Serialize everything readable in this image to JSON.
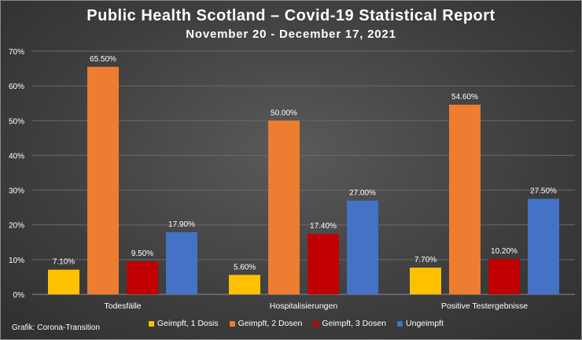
{
  "chart_data": {
    "type": "bar",
    "title": "Public Health Scotland – Covid-19 Statistical Report",
    "subtitle": "November 20 - December 17, 2021",
    "categories": [
      "Todesfälle",
      "Hospitalisierungen",
      "Positive Testergebnisse"
    ],
    "series": [
      {
        "name": "Geimpft, 1 Dosis",
        "color": "#ffc000",
        "values": [
          7.1,
          5.6,
          7.7
        ],
        "labels": [
          "7.10%",
          "5.60%",
          "7.70%"
        ]
      },
      {
        "name": "Geimpft, 2 Dosen",
        "color": "#ed7d31",
        "values": [
          65.5,
          50.0,
          54.6
        ],
        "labels": [
          "65.50%",
          "50.00%",
          "54.60%"
        ]
      },
      {
        "name": "Geimpft, 3 Dosen",
        "color": "#c00000",
        "values": [
          9.5,
          17.4,
          10.2
        ],
        "labels": [
          "9.50%",
          "17.40%",
          "10.20%"
        ]
      },
      {
        "name": "Ungeimpft",
        "color": "#4472c4",
        "values": [
          17.9,
          27.0,
          27.5
        ],
        "labels": [
          "17.90%",
          "27.00%",
          "27.50%"
        ]
      }
    ],
    "y_ticks": [
      "0%",
      "10%",
      "20%",
      "30%",
      "40%",
      "50%",
      "60%",
      "70%"
    ],
    "ylim": [
      0,
      70
    ],
    "grid": true,
    "legend": "bottom"
  },
  "source_note": "Grafik: Corona-Transition"
}
